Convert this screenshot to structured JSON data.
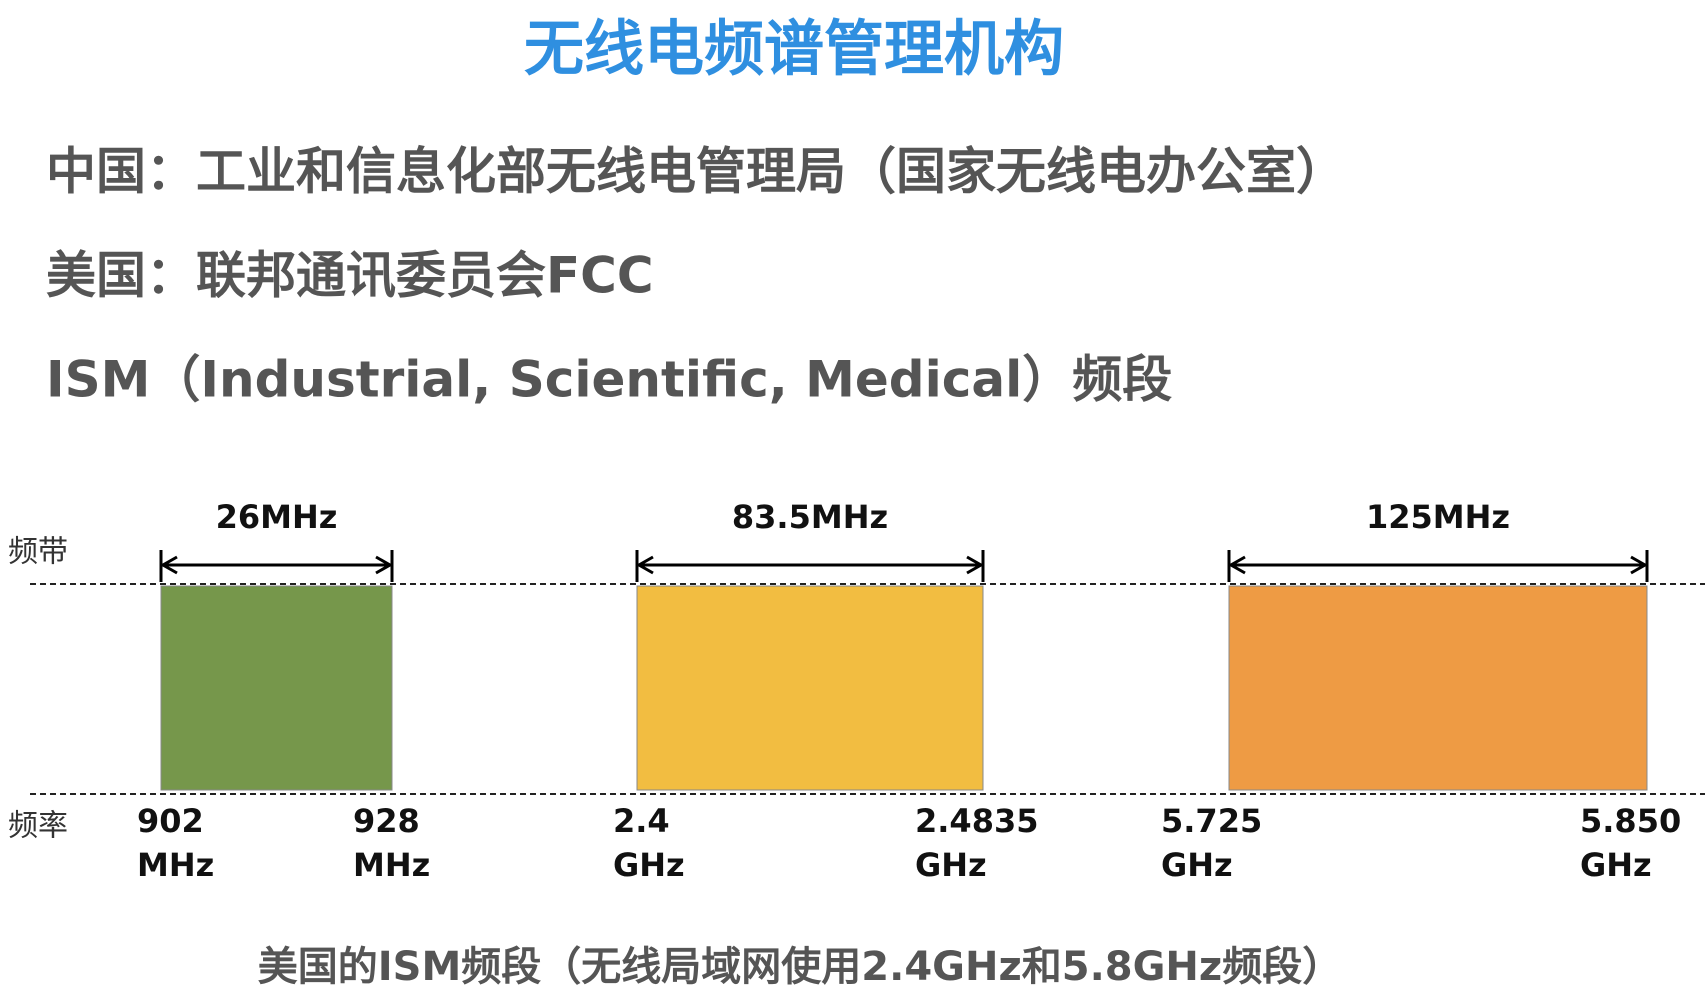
{
  "title": "无线电频谱管理机构",
  "lines": [
    "中国：工业和信息化部无线电管理局（国家无线电办公室）",
    "美国：联邦通讯委员会FCC",
    "ISM（Industrial, Scientific, Medical）频段"
  ],
  "diagram": {
    "row_labels": {
      "band": "频带",
      "frequency": "频率"
    },
    "bands": [
      {
        "width": "26MHz",
        "color": "#76974b",
        "start": {
          "value": "902",
          "unit": "MHz"
        },
        "end": {
          "value": "928",
          "unit": "MHz"
        }
      },
      {
        "width": "83.5MHz",
        "color": "#f2bd41",
        "start": {
          "value": "2.4",
          "unit": "GHz"
        },
        "end": {
          "value": "2.4835",
          "unit": "GHz"
        }
      },
      {
        "width": "125MHz",
        "color": "#ee9b44",
        "start": {
          "value": "5.725",
          "unit": "GHz"
        },
        "end": {
          "value": "5.850",
          "unit": "GHz"
        }
      }
    ],
    "caption": "美国的ISM频段（无线局域网使用2.4GHz和5.8GHz频段）"
  }
}
